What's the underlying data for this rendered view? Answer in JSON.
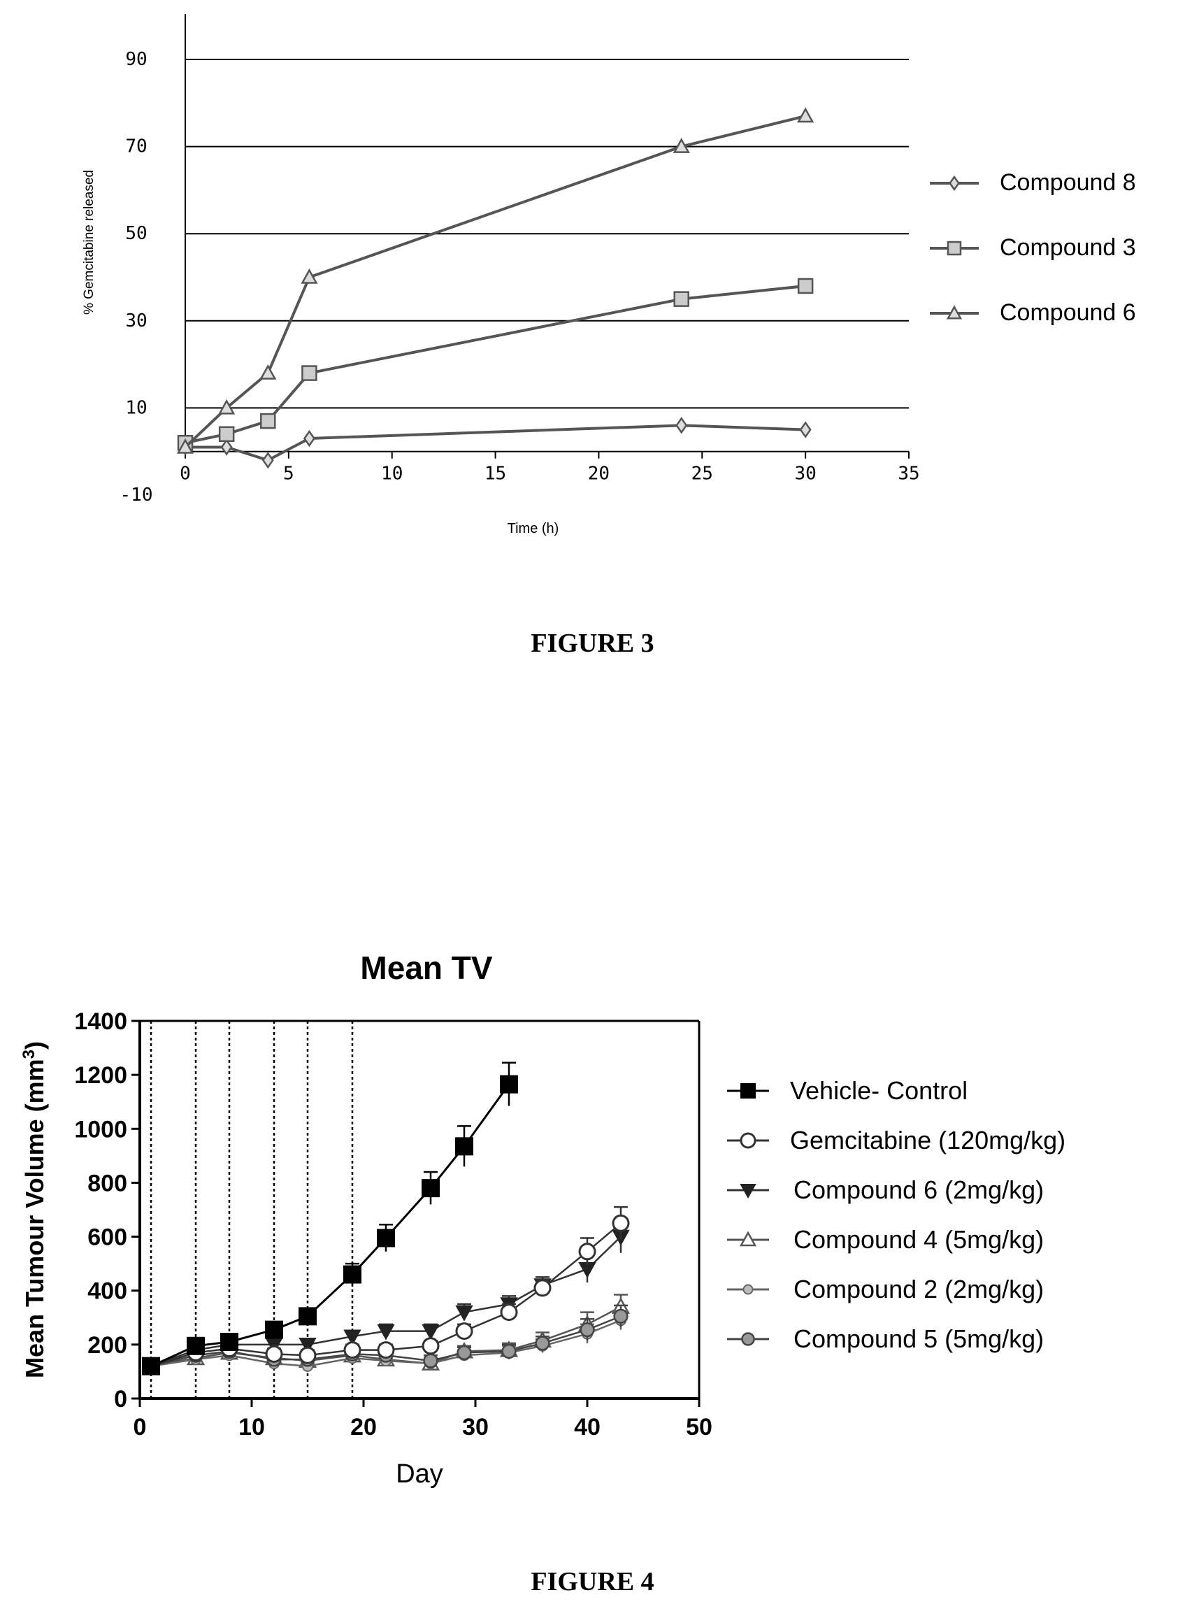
{
  "chart_data": [
    {
      "type": "line",
      "title": "",
      "xlabel": "Time (h)",
      "ylabel": "% Gemcitabine released",
      "xlim": [
        0,
        35
      ],
      "ylim": [
        -10,
        90
      ],
      "x_ticks": [
        "0",
        "5",
        "10",
        "15",
        "20",
        "25",
        "30",
        "35"
      ],
      "y_ticks": [
        "-10",
        "10",
        "30",
        "50",
        "70",
        "90"
      ],
      "grid": "horizontal",
      "legend_position": "right",
      "series": [
        {
          "name": "Compound 8",
          "marker": "diamond",
          "color": "#555555",
          "x": [
            0,
            2,
            4,
            6,
            24,
            30
          ],
          "y": [
            1,
            1,
            -2,
            3,
            6,
            5
          ]
        },
        {
          "name": "Compound 3",
          "marker": "square",
          "color": "#555555",
          "x": [
            0,
            2,
            4,
            6,
            24,
            30
          ],
          "y": [
            2,
            4,
            7,
            18,
            35,
            38
          ]
        },
        {
          "name": "Compound 6",
          "marker": "triangle",
          "color": "#555555",
          "x": [
            0,
            2,
            4,
            6,
            24,
            30
          ],
          "y": [
            1,
            10,
            18,
            40,
            70,
            77
          ]
        }
      ]
    },
    {
      "type": "line",
      "title": "Mean TV",
      "xlabel": "Day",
      "ylabel_main": "Mean Tumour  Volume (mm",
      "ylabel_sup": "3",
      "ylabel_close": ")",
      "xlim": [
        0,
        50
      ],
      "ylim": [
        0,
        1400
      ],
      "x_ticks": [
        "0",
        "10",
        "20",
        "30",
        "40",
        "50"
      ],
      "y_ticks": [
        "0",
        "200",
        "400",
        "600",
        "800",
        "1000",
        "1200",
        "1400"
      ],
      "dosing_days": [
        1,
        5,
        8,
        12,
        15,
        19
      ],
      "legend_position": "right",
      "series": [
        {
          "name": "Vehicle- Control",
          "marker": "square-filled",
          "color": "#000000",
          "x": [
            1,
            5,
            8,
            12,
            15,
            19,
            22,
            26,
            29,
            33
          ],
          "y": [
            120,
            195,
            210,
            255,
            305,
            460,
            595,
            780,
            935,
            1165
          ],
          "err": [
            25,
            25,
            25,
            25,
            25,
            40,
            50,
            60,
            75,
            80
          ]
        },
        {
          "name": "Gemcitabine (120mg/kg)",
          "marker": "circle-open",
          "color": "#333333",
          "x": [
            1,
            5,
            8,
            12,
            15,
            19,
            22,
            26,
            29,
            33,
            36,
            40,
            43
          ],
          "y": [
            120,
            170,
            185,
            165,
            160,
            180,
            180,
            195,
            250,
            320,
            410,
            545,
            650
          ],
          "err": [
            20,
            20,
            20,
            20,
            20,
            20,
            20,
            20,
            25,
            30,
            30,
            50,
            60
          ]
        },
        {
          "name": "Compound 6 (2mg/kg)",
          "marker": "triangle-down-filled",
          "color": "#333333",
          "x": [
            1,
            5,
            8,
            12,
            15,
            19,
            22,
            26,
            29,
            33,
            36,
            40,
            43
          ],
          "y": [
            120,
            180,
            200,
            200,
            200,
            230,
            250,
            250,
            320,
            350,
            420,
            480,
            600
          ],
          "err": [
            20,
            20,
            20,
            20,
            20,
            20,
            25,
            25,
            30,
            30,
            30,
            50,
            60
          ]
        },
        {
          "name": "Compound 4 (5mg/kg)",
          "marker": "triangle-up-open",
          "color": "#555555",
          "x": [
            1,
            5,
            8,
            12,
            15,
            19,
            22,
            26,
            29,
            33,
            36,
            40,
            43
          ],
          "y": [
            120,
            150,
            170,
            150,
            140,
            160,
            145,
            130,
            175,
            180,
            215,
            275,
            340
          ],
          "err": [
            20,
            20,
            20,
            20,
            20,
            20,
            20,
            20,
            20,
            25,
            30,
            45,
            45
          ]
        },
        {
          "name": "Compound 2 (2mg/kg)",
          "marker": "circle-small",
          "color": "#666666",
          "x": [
            1,
            5,
            8,
            12,
            15,
            19,
            22,
            26,
            29,
            33,
            36,
            40,
            43
          ],
          "y": [
            120,
            145,
            160,
            130,
            120,
            150,
            140,
            130,
            160,
            170,
            195,
            240,
            290
          ],
          "err": [
            20,
            20,
            20,
            20,
            20,
            20,
            20,
            20,
            20,
            25,
            25,
            35,
            35
          ]
        },
        {
          "name": "Compound 5 (5mg/kg)",
          "marker": "circle-grey",
          "color": "#444444",
          "x": [
            1,
            5,
            8,
            12,
            15,
            19,
            22,
            26,
            29,
            33,
            36,
            40,
            43
          ],
          "y": [
            120,
            160,
            175,
            145,
            145,
            165,
            160,
            140,
            170,
            175,
            205,
            255,
            305
          ],
          "err": [
            20,
            20,
            20,
            20,
            20,
            20,
            20,
            20,
            20,
            25,
            25,
            40,
            40
          ]
        }
      ]
    }
  ],
  "figure3_caption": "FIGURE 3",
  "figure4_caption": "FIGURE 4"
}
